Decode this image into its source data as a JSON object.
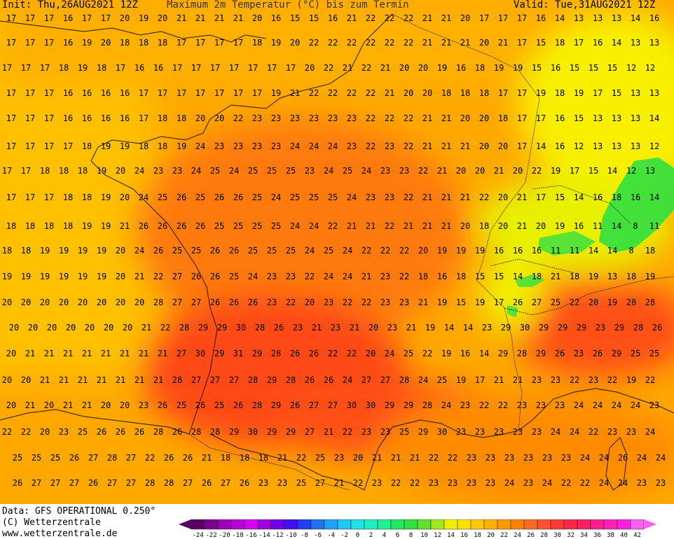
{
  "header": {
    "init": "Init: Thu,26AUG2021 12Z",
    "title": "Maximum 2m Temperatur (°C) bis zum Termin",
    "valid": "Valid: Tue,31AUG2021 12Z"
  },
  "footer": {
    "data_line": "Data: GFS OPERATIONAL 0.250°",
    "copyright_line": "(C) Wetterzentrale",
    "url_line": "www.wetterzentrale.de"
  },
  "legend": {
    "labels": [
      "-24",
      "-22",
      "-20",
      "-18",
      "-16",
      "-14",
      "-12",
      "-10",
      "-8",
      "-6",
      "-4",
      "-2",
      "0",
      "2",
      "4",
      "6",
      "8",
      "10",
      "12",
      "14",
      "16",
      "18",
      "20",
      "22",
      "24",
      "26",
      "28",
      "30",
      "32",
      "34",
      "36",
      "38",
      "40",
      "42"
    ],
    "colors": [
      "#5a0064",
      "#7a0090",
      "#9a00b8",
      "#b800d8",
      "#d800f0",
      "#a000e0",
      "#7000e8",
      "#4010f0",
      "#2040f0",
      "#2070f0",
      "#20a0f8",
      "#20c8f8",
      "#20e0e8",
      "#20f0c0",
      "#20f090",
      "#20e860",
      "#30e040",
      "#60e030",
      "#a0e820",
      "#f0f000",
      "#ffe000",
      "#ffc800",
      "#ffb000",
      "#ff9800",
      "#ff8000",
      "#ff6820",
      "#ff5030",
      "#ff3838",
      "#ff2848",
      "#ff2060",
      "#ff2090",
      "#ff20b8",
      "#ff20e0",
      "#ff60f0"
    ]
  },
  "chart_data": {
    "type": "map-grid",
    "field": "Maximum 2m Temperatur (°C)",
    "rows": [
      {
        "y": 26,
        "x0": 16,
        "values": [
          17,
          17,
          17,
          16,
          17,
          17,
          20,
          19,
          20,
          21,
          21,
          21,
          21,
          20,
          16,
          15,
          15,
          16,
          21,
          22,
          22,
          22,
          21,
          21,
          20,
          17,
          17,
          17,
          16,
          14,
          13,
          13,
          13,
          14,
          16
        ]
      },
      {
        "y": 61,
        "x0": 16,
        "values": [
          17,
          17,
          17,
          16,
          19,
          20,
          18,
          18,
          18,
          17,
          17,
          17,
          17,
          18,
          19,
          20,
          22,
          22,
          22,
          22,
          22,
          22,
          21,
          21,
          21,
          20,
          21,
          17,
          15,
          18,
          17,
          16,
          14,
          13,
          13
        ]
      },
      {
        "y": 97,
        "x0": 10,
        "values": [
          17,
          17,
          17,
          18,
          19,
          18,
          17,
          16,
          16,
          17,
          17,
          17,
          17,
          17,
          17,
          17,
          20,
          22,
          21,
          22,
          21,
          20,
          20,
          19,
          16,
          18,
          19,
          19,
          15,
          16,
          15,
          15,
          15,
          12,
          12
        ]
      },
      {
        "y": 133,
        "x0": 16,
        "values": [
          17,
          17,
          17,
          16,
          16,
          16,
          16,
          17,
          17,
          17,
          17,
          17,
          17,
          17,
          19,
          21,
          22,
          22,
          22,
          22,
          21,
          20,
          20,
          18,
          18,
          18,
          17,
          17,
          19,
          18,
          19,
          17,
          15,
          13,
          13
        ]
      },
      {
        "y": 169,
        "x0": 16,
        "values": [
          17,
          17,
          17,
          16,
          16,
          16,
          16,
          17,
          18,
          18,
          20,
          20,
          22,
          23,
          23,
          23,
          23,
          23,
          23,
          22,
          22,
          22,
          21,
          21,
          20,
          20,
          18,
          17,
          17,
          16,
          15,
          13,
          13,
          13,
          14
        ]
      },
      {
        "y": 209,
        "x0": 16,
        "values": [
          17,
          17,
          17,
          17,
          18,
          19,
          19,
          18,
          18,
          19,
          24,
          23,
          23,
          23,
          23,
          24,
          24,
          24,
          23,
          22,
          23,
          22,
          21,
          21,
          21,
          20,
          20,
          17,
          14,
          16,
          12,
          13,
          13,
          13,
          12
        ]
      },
      {
        "y": 244,
        "x0": 10,
        "values": [
          17,
          17,
          18,
          18,
          18,
          19,
          20,
          24,
          23,
          23,
          24,
          25,
          24,
          25,
          25,
          25,
          23,
          24,
          25,
          24,
          23,
          23,
          22,
          21,
          20,
          20,
          21,
          20,
          22,
          19,
          17,
          15,
          14,
          12,
          13
        ]
      },
      {
        "y": 282,
        "x0": 16,
        "values": [
          17,
          17,
          17,
          18,
          18,
          19,
          20,
          24,
          25,
          26,
          25,
          26,
          26,
          25,
          24,
          25,
          25,
          25,
          24,
          23,
          23,
          22,
          21,
          21,
          21,
          22,
          20,
          21,
          17,
          15,
          14,
          16,
          18,
          16,
          14
        ]
      },
      {
        "y": 323,
        "x0": 16,
        "values": [
          18,
          18,
          18,
          18,
          19,
          19,
          21,
          26,
          26,
          26,
          26,
          25,
          25,
          25,
          25,
          24,
          24,
          22,
          21,
          21,
          22,
          21,
          21,
          21,
          20,
          18,
          20,
          21,
          20,
          19,
          16,
          11,
          14,
          8,
          11
        ]
      },
      {
        "y": 358,
        "x0": 10,
        "values": [
          18,
          18,
          19,
          19,
          19,
          19,
          20,
          24,
          26,
          25,
          25,
          26,
          26,
          25,
          25,
          25,
          24,
          25,
          24,
          22,
          22,
          22,
          20,
          19,
          19,
          19,
          16,
          16,
          16,
          11,
          11,
          14,
          14,
          8,
          18
        ]
      },
      {
        "y": 395,
        "x0": 10,
        "values": [
          19,
          19,
          19,
          19,
          19,
          19,
          20,
          21,
          22,
          27,
          26,
          26,
          25,
          24,
          23,
          23,
          22,
          24,
          24,
          21,
          23,
          22,
          18,
          16,
          18,
          15,
          15,
          14,
          18,
          21,
          18,
          19,
          13,
          18,
          19
        ]
      },
      {
        "y": 432,
        "x0": 10,
        "values": [
          20,
          20,
          20,
          20,
          20,
          20,
          20,
          20,
          28,
          27,
          27,
          26,
          26,
          26,
          23,
          22,
          20,
          23,
          22,
          22,
          23,
          23,
          21,
          19,
          15,
          19,
          17,
          26,
          27,
          25,
          22,
          20,
          19,
          28,
          28
        ]
      },
      {
        "y": 468,
        "x0": 20,
        "values": [
          20,
          20,
          20,
          20,
          20,
          20,
          20,
          21,
          22,
          28,
          29,
          29,
          30,
          28,
          26,
          23,
          21,
          23,
          21,
          20,
          23,
          21,
          19,
          14,
          14,
          23,
          29,
          30,
          29,
          29,
          29,
          23,
          29,
          28,
          26
        ]
      },
      {
        "y": 505,
        "x0": 16,
        "values": [
          20,
          21,
          21,
          21,
          21,
          21,
          21,
          21,
          21,
          27,
          30,
          29,
          31,
          29,
          28,
          26,
          26,
          22,
          22,
          20,
          24,
          25,
          22,
          19,
          16,
          14,
          29,
          28,
          29,
          26,
          23,
          26,
          29,
          25,
          25
        ]
      },
      {
        "y": 543,
        "x0": 10,
        "values": [
          20,
          20,
          21,
          21,
          21,
          21,
          21,
          21,
          21,
          28,
          27,
          27,
          27,
          28,
          29,
          28,
          26,
          26,
          24,
          27,
          27,
          28,
          24,
          25,
          19,
          17,
          21,
          21,
          23,
          23,
          22,
          23,
          22,
          19,
          22
        ]
      },
      {
        "y": 579,
        "x0": 16,
        "values": [
          20,
          21,
          20,
          21,
          21,
          20,
          20,
          23,
          26,
          25,
          26,
          25,
          26,
          28,
          29,
          26,
          27,
          27,
          30,
          30,
          29,
          29,
          28,
          24,
          23,
          22,
          22,
          23,
          23,
          23,
          24,
          24,
          24,
          24,
          23
        ]
      },
      {
        "y": 617,
        "x0": 10,
        "values": [
          22,
          22,
          20,
          23,
          25,
          26,
          26,
          26,
          28,
          26,
          28,
          28,
          29,
          30,
          29,
          29,
          27,
          21,
          22,
          23,
          23,
          25,
          29,
          30,
          23,
          23,
          23,
          23,
          23,
          24,
          24,
          22,
          23,
          23,
          24
        ]
      },
      {
        "y": 654,
        "x0": 25,
        "values": [
          25,
          25,
          25,
          26,
          27,
          28,
          27,
          22,
          26,
          26,
          21,
          18,
          18,
          18,
          21,
          22,
          25,
          23,
          20,
          21,
          21,
          21,
          22,
          22,
          23,
          23,
          23,
          23,
          23,
          23,
          24,
          24,
          26,
          24,
          24
        ]
      },
      {
        "y": 690,
        "x0": 25,
        "values": [
          26,
          27,
          27,
          27,
          26,
          27,
          27,
          28,
          28,
          27,
          26,
          27,
          26,
          23,
          23,
          25,
          27,
          21,
          22,
          23,
          22,
          22,
          23,
          23,
          23,
          23,
          24,
          23,
          24,
          22,
          22,
          24,
          24,
          23,
          23
        ]
      }
    ],
    "step_x": 27
  }
}
